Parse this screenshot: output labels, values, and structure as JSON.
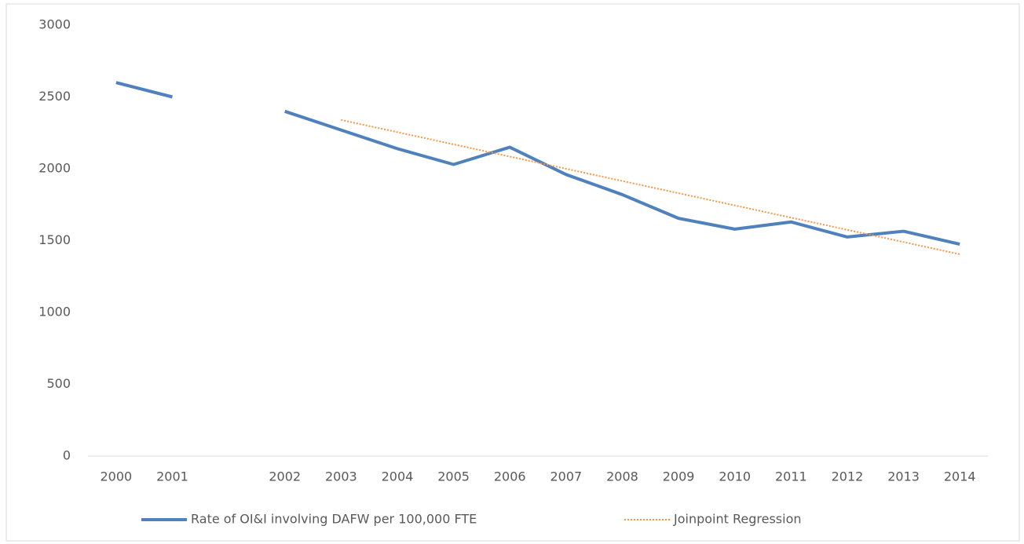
{
  "chart_data": {
    "type": "line",
    "categories": [
      "2000",
      "2001",
      null,
      "2002",
      "2003",
      "2004",
      "2005",
      "2006",
      "2007",
      "2008",
      "2009",
      "2010",
      "2011",
      "2012",
      "2013",
      "2014"
    ],
    "series": [
      {
        "name": "Rate of OI&I involving DAFW per 100,000 FTE",
        "color": "#4f81bd",
        "style": "solid",
        "values": [
          2600,
          2500,
          null,
          2400,
          2270,
          2140,
          2030,
          2150,
          1960,
          1820,
          1655,
          1580,
          1630,
          1525,
          1565,
          1475
        ]
      },
      {
        "name": "Joinpoint Regression",
        "color": "#f79646",
        "style": "dotted",
        "values": [
          null,
          null,
          null,
          null,
          2340,
          2255,
          2170,
          2085,
          2000,
          1915,
          1830,
          1745,
          1660,
          1575,
          1490,
          1405
        ]
      }
    ],
    "ylim": [
      0,
      3000
    ],
    "yticks": [
      0,
      500,
      1000,
      1500,
      2000,
      2500,
      3000
    ],
    "grid": false,
    "legend": "bottom"
  }
}
